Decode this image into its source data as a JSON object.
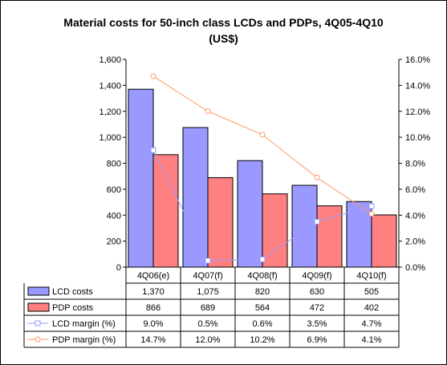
{
  "chart_data": {
    "type": "bar",
    "title_line1": "Material costs for 50-inch class LCDs and PDPs, 4Q05-4Q10",
    "title_line2": "(US$)",
    "categories": [
      "4Q06(e)",
      "4Q07(f)",
      "4Q08(f)",
      "4Q09(f)",
      "4Q10(f)"
    ],
    "left_axis": {
      "min": 0,
      "max": 1600,
      "step": 200,
      "tick_labels": [
        "0",
        "200",
        "400",
        "600",
        "800",
        "1,000",
        "1,200",
        "1,400",
        "1,600"
      ]
    },
    "right_axis": {
      "min": 0,
      "max": 16,
      "step": 2,
      "tick_labels": [
        "0.0%",
        "2.0%",
        "4.0%",
        "6.0%",
        "8.0%",
        "10.0%",
        "12.0%",
        "14.0%",
        "16.0%"
      ]
    },
    "bar_series": [
      {
        "name": "LCD costs",
        "color": "#9999ff",
        "values": [
          1370,
          1075,
          820,
          630,
          505
        ],
        "display": [
          "1,370",
          "1,075",
          "820",
          "630",
          "505"
        ]
      },
      {
        "name": "PDP costs",
        "color": "#ff8080",
        "values": [
          866,
          689,
          564,
          472,
          402
        ],
        "display": [
          "866",
          "689",
          "564",
          "472",
          "402"
        ]
      }
    ],
    "line_series": [
      {
        "name": "LCD margin (%)",
        "color": "#9999ff",
        "marker": "square",
        "values": [
          9.0,
          0.5,
          0.6,
          3.5,
          4.7
        ],
        "display": [
          "9.0%",
          "0.5%",
          "0.6%",
          "3.5%",
          "4.7%"
        ]
      },
      {
        "name": "PDP margin (%)",
        "color": "#ff9966",
        "marker": "circle",
        "values": [
          14.7,
          12.0,
          10.2,
          6.9,
          4.1
        ],
        "display": [
          "14.7%",
          "12.0%",
          "10.2%",
          "6.9%",
          "4.1%"
        ]
      }
    ],
    "grid": false,
    "legend": "data-table"
  }
}
